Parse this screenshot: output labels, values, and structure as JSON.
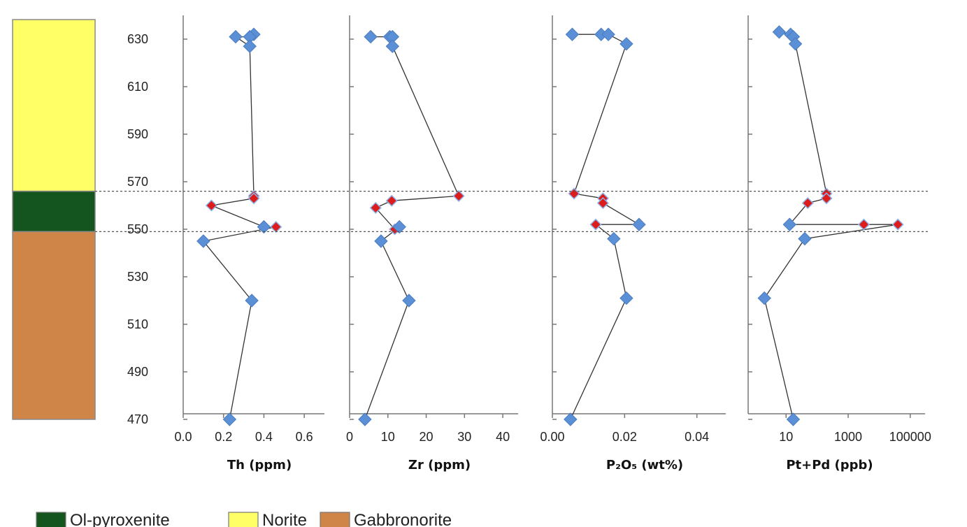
{
  "chart_data": {
    "type": "scatter",
    "depth_axis": {
      "range": [
        470,
        640
      ],
      "ticks": [
        470,
        490,
        510,
        530,
        550,
        570,
        590,
        610,
        630
      ]
    },
    "boundaries": [
      566,
      549
    ],
    "units": [
      {
        "name": "Norite",
        "from": 566,
        "to": 640,
        "color": "#ffff66"
      },
      {
        "name": "Ol-pyroxenite",
        "from": 549,
        "to": 566,
        "color": "#14551f"
      },
      {
        "name": "Gabbronorite",
        "from": 470,
        "to": 549,
        "color": "#cf8547"
      }
    ],
    "panels": [
      {
        "xlabel": "Th (ppm)",
        "scale": "linear",
        "xlim": [
          0,
          0.7
        ],
        "ticks": [
          0.0,
          0.2,
          0.4,
          0.6
        ],
        "tick_labels": [
          "0.0",
          "0.2",
          "0.4",
          "0.6"
        ],
        "points": [
          {
            "x": 0.35,
            "y": 632,
            "highlight": false
          },
          {
            "x": 0.33,
            "y": 631,
            "highlight": false
          },
          {
            "x": 0.26,
            "y": 631,
            "highlight": false
          },
          {
            "x": 0.33,
            "y": 627,
            "highlight": false
          },
          {
            "x": 0.35,
            "y": 564,
            "highlight": true
          },
          {
            "x": 0.35,
            "y": 563,
            "highlight": true
          },
          {
            "x": 0.14,
            "y": 560,
            "highlight": true
          },
          {
            "x": 0.4,
            "y": 551,
            "highlight": false
          },
          {
            "x": 0.46,
            "y": 551,
            "highlight": true
          },
          {
            "x": 0.1,
            "y": 545,
            "highlight": false
          },
          {
            "x": 0.34,
            "y": 520,
            "highlight": false
          },
          {
            "x": 0.23,
            "y": 470,
            "highlight": false
          }
        ]
      },
      {
        "xlabel": "Zr (ppm)",
        "scale": "linear",
        "xlim": [
          0,
          44
        ],
        "ticks": [
          0,
          10,
          20,
          30,
          40
        ],
        "tick_labels": [
          "0",
          "10",
          "20",
          "30",
          "40"
        ],
        "points": [
          {
            "x": 5.5,
            "y": 631,
            "highlight": false
          },
          {
            "x": 10.5,
            "y": 631,
            "highlight": false
          },
          {
            "x": 11.2,
            "y": 631,
            "highlight": false
          },
          {
            "x": 11.2,
            "y": 627,
            "highlight": false
          },
          {
            "x": 28.5,
            "y": 564,
            "highlight": true
          },
          {
            "x": 11.0,
            "y": 562,
            "highlight": true
          },
          {
            "x": 6.8,
            "y": 559,
            "highlight": true
          },
          {
            "x": 11.8,
            "y": 550,
            "highlight": true
          },
          {
            "x": 13.0,
            "y": 551,
            "highlight": false
          },
          {
            "x": 8.2,
            "y": 545,
            "highlight": false
          },
          {
            "x": 15.5,
            "y": 520,
            "highlight": false
          },
          {
            "x": 4.0,
            "y": 470,
            "highlight": false
          }
        ]
      },
      {
        "xlabel": "P₂O₅ (wt%)",
        "scale": "linear",
        "xlim": [
          0,
          0.048
        ],
        "ticks": [
          0,
          0.02,
          0.04
        ],
        "tick_labels": [
          "0.00",
          "0.02",
          "0.04"
        ],
        "points": [
          {
            "x": 0.0055,
            "y": 632,
            "highlight": false
          },
          {
            "x": 0.0135,
            "y": 632,
            "highlight": false
          },
          {
            "x": 0.0155,
            "y": 632,
            "highlight": false
          },
          {
            "x": 0.0205,
            "y": 628,
            "highlight": false
          },
          {
            "x": 0.006,
            "y": 565,
            "highlight": true
          },
          {
            "x": 0.014,
            "y": 563,
            "highlight": true
          },
          {
            "x": 0.014,
            "y": 561,
            "highlight": true
          },
          {
            "x": 0.024,
            "y": 552,
            "highlight": false
          },
          {
            "x": 0.012,
            "y": 552,
            "highlight": true
          },
          {
            "x": 0.017,
            "y": 546,
            "highlight": false
          },
          {
            "x": 0.0205,
            "y": 521,
            "highlight": false
          },
          {
            "x": 0.005,
            "y": 470,
            "highlight": false
          }
        ]
      },
      {
        "xlabel": "Pt+Pd (ppb)",
        "scale": "log",
        "xlim": [
          0.6,
          300000
        ],
        "ticks": [
          10,
          1000,
          100000
        ],
        "tick_labels": [
          "10",
          "1000",
          "100000"
        ],
        "points": [
          {
            "x": 6,
            "y": 633,
            "highlight": false
          },
          {
            "x": 14,
            "y": 632,
            "highlight": false
          },
          {
            "x": 17,
            "y": 631,
            "highlight": false
          },
          {
            "x": 20,
            "y": 628,
            "highlight": false
          },
          {
            "x": 200,
            "y": 565,
            "highlight": true
          },
          {
            "x": 200,
            "y": 563,
            "highlight": true
          },
          {
            "x": 50,
            "y": 561,
            "highlight": true
          },
          {
            "x": 13,
            "y": 552,
            "highlight": false
          },
          {
            "x": 3200,
            "y": 552,
            "highlight": true
          },
          {
            "x": 40000,
            "y": 552,
            "highlight": true
          },
          {
            "x": 40,
            "y": 546,
            "highlight": false
          },
          {
            "x": 2,
            "y": 521,
            "highlight": false
          },
          {
            "x": 17,
            "y": 470,
            "highlight": false
          }
        ]
      }
    ],
    "legend": [
      {
        "label": "Ol-pyroxenite",
        "color": "#14551f"
      },
      {
        "label": "Norite",
        "color": "#ffff66"
      },
      {
        "label": "Gabbronorite",
        "color": "#cf8547"
      }
    ],
    "colors": {
      "point": "#5b8fd6",
      "highlight": "#dd1c1c",
      "line": "#333333"
    }
  }
}
